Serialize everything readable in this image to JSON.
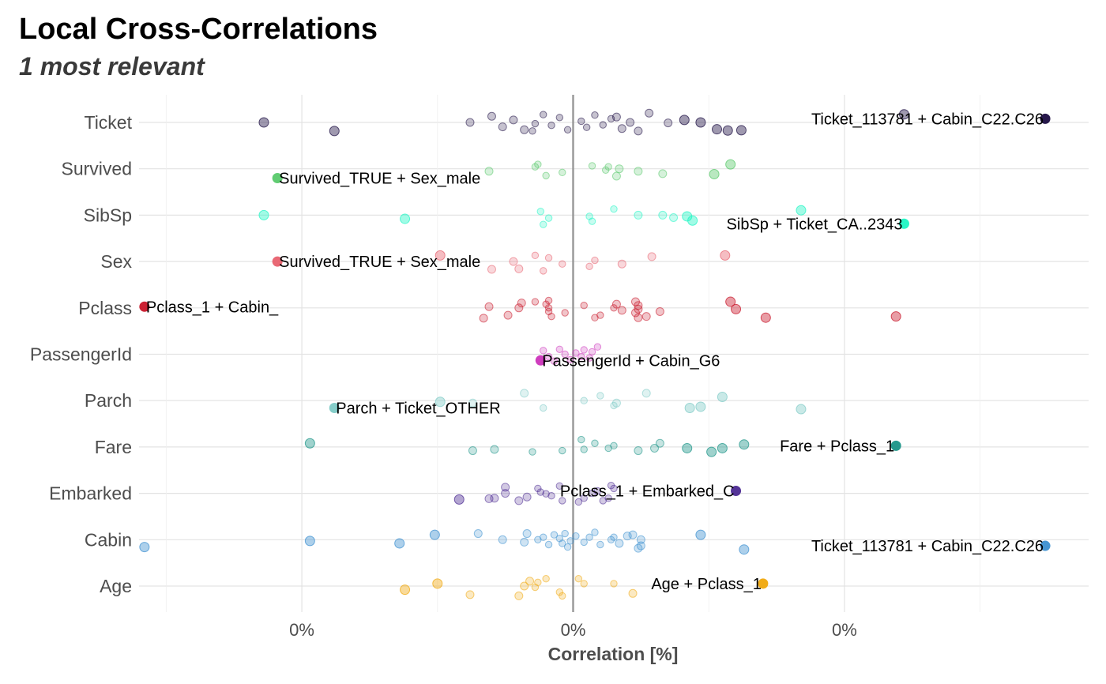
{
  "chart_data": {
    "type": "scatter",
    "title": "Local Cross-Correlations",
    "subtitle": "1 most relevant",
    "xlabel": "Correlation [%]",
    "ylabel": "",
    "xlim": [
      -0.16,
      0.19
    ],
    "x_ticks": [
      {
        "value": -0.1,
        "label": "0%"
      },
      {
        "value": 0.0,
        "label": "0%"
      },
      {
        "value": 0.1,
        "label": "0%"
      }
    ],
    "x_minor_grid": [
      -0.15,
      -0.05,
      0.05,
      0.15
    ],
    "zero_line": 0,
    "grid": true,
    "legend": "none",
    "categories": [
      "Age",
      "Cabin",
      "Embarked",
      "Fare",
      "Parch",
      "PassengerId",
      "Pclass",
      "Sex",
      "SibSp",
      "Survived",
      "Ticket"
    ],
    "series": [
      {
        "category": "Ticket",
        "color": "#1b0c41",
        "highlight": {
          "x": 0.174,
          "dy": -0.15,
          "label": "Ticket_113781 + Cabin_C22.C26"
        },
        "points": [
          {
            "x": -0.088,
            "dy": 0.35
          },
          {
            "x": -0.114,
            "dy": 0.0
          },
          {
            "x": 0.122,
            "dy": -0.33
          },
          {
            "x": 0.057,
            "dy": 0.33
          },
          {
            "x": 0.053,
            "dy": 0.28
          },
          {
            "x": 0.047,
            "dy": 0.0
          },
          {
            "x": 0.041,
            "dy": -0.1
          },
          {
            "x": 0.035,
            "dy": 0.02
          },
          {
            "x": 0.028,
            "dy": -0.38
          },
          {
            "x": 0.024,
            "dy": 0.35
          },
          {
            "x": 0.021,
            "dy": 0.0
          },
          {
            "x": 0.018,
            "dy": 0.25
          },
          {
            "x": 0.014,
            "dy": -0.15
          },
          {
            "x": 0.011,
            "dy": 0.1
          },
          {
            "x": 0.008,
            "dy": -0.3
          },
          {
            "x": 0.005,
            "dy": 0.2
          },
          {
            "x": 0.003,
            "dy": -0.05
          },
          {
            "x": -0.002,
            "dy": 0.3
          },
          {
            "x": -0.005,
            "dy": -0.2
          },
          {
            "x": -0.008,
            "dy": 0.12
          },
          {
            "x": -0.011,
            "dy": -0.32
          },
          {
            "x": -0.014,
            "dy": 0.05
          },
          {
            "x": -0.018,
            "dy": 0.3
          },
          {
            "x": -0.022,
            "dy": -0.1
          },
          {
            "x": -0.026,
            "dy": 0.18
          },
          {
            "x": -0.03,
            "dy": -0.25
          },
          {
            "x": -0.038,
            "dy": 0.0
          },
          {
            "x": -0.015,
            "dy": 0.35
          },
          {
            "x": 0.016,
            "dy": -0.22
          },
          {
            "x": 0.062,
            "dy": 0.32
          }
        ]
      },
      {
        "category": "Survived",
        "color": "#57c96a",
        "highlight": {
          "x": -0.109,
          "dy": 0.38,
          "label": "Survived_TRUE + Sex_male"
        },
        "points": [
          {
            "x": 0.058,
            "dy": -0.18
          },
          {
            "x": 0.052,
            "dy": 0.22
          },
          {
            "x": 0.033,
            "dy": 0.2
          },
          {
            "x": 0.017,
            "dy": 0.0
          },
          {
            "x": 0.013,
            "dy": -0.08
          },
          {
            "x": 0.012,
            "dy": 0.05
          },
          {
            "x": 0.007,
            "dy": -0.12
          },
          {
            "x": -0.01,
            "dy": 0.28
          },
          {
            "x": -0.014,
            "dy": -0.08
          },
          {
            "x": -0.013,
            "dy": -0.18
          },
          {
            "x": -0.004,
            "dy": 0.15
          },
          {
            "x": 0.024,
            "dy": 0.1
          },
          {
            "x": 0.016,
            "dy": 0.3
          },
          {
            "x": -0.031,
            "dy": 0.1
          }
        ]
      },
      {
        "category": "SibSp",
        "color": "#1ff5c4",
        "highlight": {
          "x": 0.122,
          "dy": 0.35,
          "label": "SibSp + Ticket_CA..2343"
        },
        "points": [
          {
            "x": -0.114,
            "dy": 0.0
          },
          {
            "x": -0.062,
            "dy": 0.15
          },
          {
            "x": 0.084,
            "dy": -0.2
          },
          {
            "x": 0.042,
            "dy": 0.05
          },
          {
            "x": 0.044,
            "dy": 0.22
          },
          {
            "x": 0.037,
            "dy": 0.1
          },
          {
            "x": 0.033,
            "dy": 0.0
          },
          {
            "x": 0.024,
            "dy": 0.0
          },
          {
            "x": 0.006,
            "dy": 0.05
          },
          {
            "x": -0.009,
            "dy": 0.12
          },
          {
            "x": -0.011,
            "dy": 0.38
          },
          {
            "x": -0.012,
            "dy": -0.15
          },
          {
            "x": 0.015,
            "dy": -0.25
          },
          {
            "x": 0.007,
            "dy": 0.25
          }
        ]
      },
      {
        "category": "Sex",
        "color": "#e8616e",
        "highlight": {
          "x": -0.109,
          "dy": 0.0,
          "label": "Survived_TRUE + Sex_male"
        },
        "points": [
          {
            "x": -0.049,
            "dy": -0.25
          },
          {
            "x": -0.02,
            "dy": 0.3
          },
          {
            "x": -0.011,
            "dy": 0.38
          },
          {
            "x": -0.009,
            "dy": -0.15
          },
          {
            "x": -0.004,
            "dy": 0.1
          },
          {
            "x": 0.008,
            "dy": -0.05
          },
          {
            "x": 0.029,
            "dy": -0.2
          },
          {
            "x": 0.056,
            "dy": -0.25
          },
          {
            "x": -0.022,
            "dy": 0.0
          },
          {
            "x": -0.014,
            "dy": -0.25
          },
          {
            "x": 0.006,
            "dy": 0.2
          },
          {
            "x": 0.018,
            "dy": 0.1
          },
          {
            "x": -0.03,
            "dy": 0.32
          }
        ]
      },
      {
        "category": "Pclass",
        "color": "#c81528",
        "highlight": {
          "x": -0.158,
          "dy": -0.05,
          "label": "Pclass_1 + Cabin_"
        },
        "points": [
          {
            "x": 0.119,
            "dy": 0.35
          },
          {
            "x": 0.071,
            "dy": 0.4
          },
          {
            "x": 0.06,
            "dy": 0.05
          },
          {
            "x": 0.058,
            "dy": -0.25
          },
          {
            "x": 0.024,
            "dy": 0.4
          },
          {
            "x": 0.023,
            "dy": 0.2
          },
          {
            "x": 0.024,
            "dy": 0.05
          },
          {
            "x": 0.024,
            "dy": -0.1
          },
          {
            "x": 0.023,
            "dy": -0.25
          },
          {
            "x": 0.018,
            "dy": 0.1
          },
          {
            "x": 0.016,
            "dy": -0.15
          },
          {
            "x": 0.01,
            "dy": 0.3
          },
          {
            "x": -0.008,
            "dy": 0.35
          },
          {
            "x": -0.009,
            "dy": 0.15
          },
          {
            "x": -0.009,
            "dy": 0.0
          },
          {
            "x": -0.01,
            "dy": -0.15
          },
          {
            "x": -0.009,
            "dy": -0.3
          },
          {
            "x": -0.024,
            "dy": 0.3
          },
          {
            "x": -0.02,
            "dy": 0.0
          },
          {
            "x": -0.031,
            "dy": -0.05
          },
          {
            "x": -0.033,
            "dy": 0.42
          },
          {
            "x": -0.019,
            "dy": -0.2
          },
          {
            "x": 0.027,
            "dy": 0.35
          },
          {
            "x": 0.015,
            "dy": 0.0
          },
          {
            "x": -0.003,
            "dy": 0.2
          },
          {
            "x": 0.004,
            "dy": -0.1
          },
          {
            "x": 0.032,
            "dy": 0.15
          },
          {
            "x": -0.014,
            "dy": -0.25
          },
          {
            "x": 0.008,
            "dy": 0.4
          }
        ]
      },
      {
        "category": "PassengerId",
        "color": "#cc33bb",
        "highlight": {
          "x": -0.012,
          "dy": 0.25,
          "label": "PassengerId + Cabin_G6"
        },
        "points": [
          {
            "x": 0.009,
            "dy": -0.3
          },
          {
            "x": 0.007,
            "dy": -0.1
          },
          {
            "x": 0.006,
            "dy": 0.15
          },
          {
            "x": -0.003,
            "dy": 0.0
          },
          {
            "x": -0.005,
            "dy": -0.2
          },
          {
            "x": -0.009,
            "dy": 0.1
          },
          {
            "x": -0.011,
            "dy": -0.15
          },
          {
            "x": 0.003,
            "dy": 0.1
          },
          {
            "x": 0.001,
            "dy": -0.05
          },
          {
            "x": -0.001,
            "dy": 0.22
          },
          {
            "x": 0.004,
            "dy": -0.18
          },
          {
            "x": -0.007,
            "dy": 0.28
          }
        ]
      },
      {
        "category": "Parch",
        "color": "#7ecac6",
        "highlight": {
          "x": -0.088,
          "dy": 0.3,
          "label": "Parch + Ticket_OTHER"
        },
        "points": [
          {
            "x": 0.084,
            "dy": 0.35
          },
          {
            "x": 0.055,
            "dy": -0.15
          },
          {
            "x": 0.047,
            "dy": 0.25
          },
          {
            "x": 0.043,
            "dy": 0.3
          },
          {
            "x": 0.027,
            "dy": -0.3
          },
          {
            "x": 0.016,
            "dy": 0.1
          },
          {
            "x": 0.015,
            "dy": 0.2
          },
          {
            "x": 0.01,
            "dy": -0.2
          },
          {
            "x": 0.004,
            "dy": 0.0
          },
          {
            "x": -0.018,
            "dy": -0.3
          },
          {
            "x": -0.037,
            "dy": 0.1
          },
          {
            "x": -0.049,
            "dy": 0.05
          },
          {
            "x": -0.011,
            "dy": 0.3
          }
        ]
      },
      {
        "category": "Fare",
        "color": "#1a9487",
        "highlight": {
          "x": 0.119,
          "dy": -0.05,
          "label": "Fare + Pclass_1"
        },
        "points": [
          {
            "x": -0.097,
            "dy": -0.15
          },
          {
            "x": 0.063,
            "dy": -0.1
          },
          {
            "x": 0.055,
            "dy": 0.05
          },
          {
            "x": 0.051,
            "dy": 0.2
          },
          {
            "x": 0.042,
            "dy": 0.05
          },
          {
            "x": 0.032,
            "dy": -0.15
          },
          {
            "x": 0.03,
            "dy": 0.05
          },
          {
            "x": 0.024,
            "dy": 0.15
          },
          {
            "x": 0.013,
            "dy": 0.05
          },
          {
            "x": 0.008,
            "dy": -0.15
          },
          {
            "x": 0.004,
            "dy": 0.1
          },
          {
            "x": -0.004,
            "dy": 0.15
          },
          {
            "x": -0.015,
            "dy": 0.2
          },
          {
            "x": -0.029,
            "dy": 0.1
          },
          {
            "x": -0.037,
            "dy": 0.15
          },
          {
            "x": 0.003,
            "dy": -0.3
          },
          {
            "x": 0.015,
            "dy": -0.05
          }
        ]
      },
      {
        "category": "Embarked",
        "color": "#4b2991",
        "highlight": {
          "x": 0.06,
          "dy": -0.1,
          "label": "Pclass_1 + Embarked_C"
        },
        "points": [
          {
            "x": 0.014,
            "dy": -0.32
          },
          {
            "x": 0.015,
            "dy": -0.2
          },
          {
            "x": 0.007,
            "dy": 0.0
          },
          {
            "x": 0.004,
            "dy": 0.2
          },
          {
            "x": -0.004,
            "dy": 0.3
          },
          {
            "x": -0.008,
            "dy": 0.1
          },
          {
            "x": -0.012,
            "dy": -0.05
          },
          {
            "x": -0.013,
            "dy": -0.2
          },
          {
            "x": -0.02,
            "dy": 0.3
          },
          {
            "x": -0.025,
            "dy": 0.0
          },
          {
            "x": -0.029,
            "dy": 0.2
          },
          {
            "x": -0.042,
            "dy": 0.25
          },
          {
            "x": -0.025,
            "dy": -0.25
          },
          {
            "x": 0.013,
            "dy": 0.2
          },
          {
            "x": -0.017,
            "dy": 0.15
          },
          {
            "x": 0.009,
            "dy": -0.1
          },
          {
            "x": -0.005,
            "dy": -0.3
          },
          {
            "x": 0.002,
            "dy": 0.35
          },
          {
            "x": -0.01,
            "dy": 0.02
          },
          {
            "x": 0.011,
            "dy": 0.3
          },
          {
            "x": -0.031,
            "dy": 0.22
          }
        ]
      },
      {
        "category": "Cabin",
        "color": "#3b8fd0",
        "highlight": {
          "x": 0.174,
          "dy": 0.25,
          "label": "Ticket_113781 + Cabin_C22.C26"
        },
        "points": [
          {
            "x": -0.158,
            "dy": 0.3
          },
          {
            "x": -0.097,
            "dy": 0.05
          },
          {
            "x": -0.064,
            "dy": 0.15
          },
          {
            "x": -0.051,
            "dy": -0.2
          },
          {
            "x": 0.063,
            "dy": 0.4
          },
          {
            "x": 0.047,
            "dy": -0.2
          },
          {
            "x": 0.024,
            "dy": 0.35
          },
          {
            "x": 0.025,
            "dy": 0.25
          },
          {
            "x": 0.025,
            "dy": 0.0
          },
          {
            "x": 0.022,
            "dy": -0.2
          },
          {
            "x": 0.017,
            "dy": 0.15
          },
          {
            "x": 0.015,
            "dy": -0.1
          },
          {
            "x": 0.014,
            "dy": 0.0
          },
          {
            "x": 0.01,
            "dy": 0.2
          },
          {
            "x": 0.006,
            "dy": -0.1
          },
          {
            "x": 0.004,
            "dy": 0.1
          },
          {
            "x": -0.002,
            "dy": 0.3
          },
          {
            "x": -0.004,
            "dy": 0.15
          },
          {
            "x": -0.005,
            "dy": -0.05
          },
          {
            "x": -0.007,
            "dy": -0.2
          },
          {
            "x": -0.009,
            "dy": 0.2
          },
          {
            "x": -0.011,
            "dy": -0.1
          },
          {
            "x": -0.013,
            "dy": 0.0
          },
          {
            "x": -0.017,
            "dy": -0.25
          },
          {
            "x": -0.018,
            "dy": 0.1
          },
          {
            "x": -0.026,
            "dy": 0.0
          },
          {
            "x": -0.035,
            "dy": -0.25
          },
          {
            "x": -0.003,
            "dy": -0.25
          },
          {
            "x": 0.008,
            "dy": -0.3
          },
          {
            "x": 0.02,
            "dy": -0.15
          },
          {
            "x": -0.001,
            "dy": 0.05
          },
          {
            "x": 0.001,
            "dy": -0.15
          }
        ]
      },
      {
        "category": "Age",
        "color": "#f0a80c",
        "highlight": {
          "x": 0.07,
          "dy": -0.1,
          "label": "Age + Pclass_1"
        },
        "points": [
          {
            "x": -0.062,
            "dy": 0.15
          },
          {
            "x": -0.05,
            "dy": -0.1
          },
          {
            "x": -0.038,
            "dy": 0.35
          },
          {
            "x": 0.022,
            "dy": 0.3
          },
          {
            "x": 0.015,
            "dy": -0.1
          },
          {
            "x": -0.016,
            "dy": -0.2
          },
          {
            "x": -0.018,
            "dy": 0.0
          },
          {
            "x": -0.014,
            "dy": 0.05
          },
          {
            "x": -0.013,
            "dy": -0.15
          },
          {
            "x": -0.005,
            "dy": 0.25
          },
          {
            "x": 0.004,
            "dy": -0.1
          },
          {
            "x": -0.01,
            "dy": -0.3
          },
          {
            "x": -0.02,
            "dy": 0.4
          },
          {
            "x": -0.004,
            "dy": 0.4
          },
          {
            "x": 0.002,
            "dy": -0.3
          }
        ]
      }
    ]
  }
}
